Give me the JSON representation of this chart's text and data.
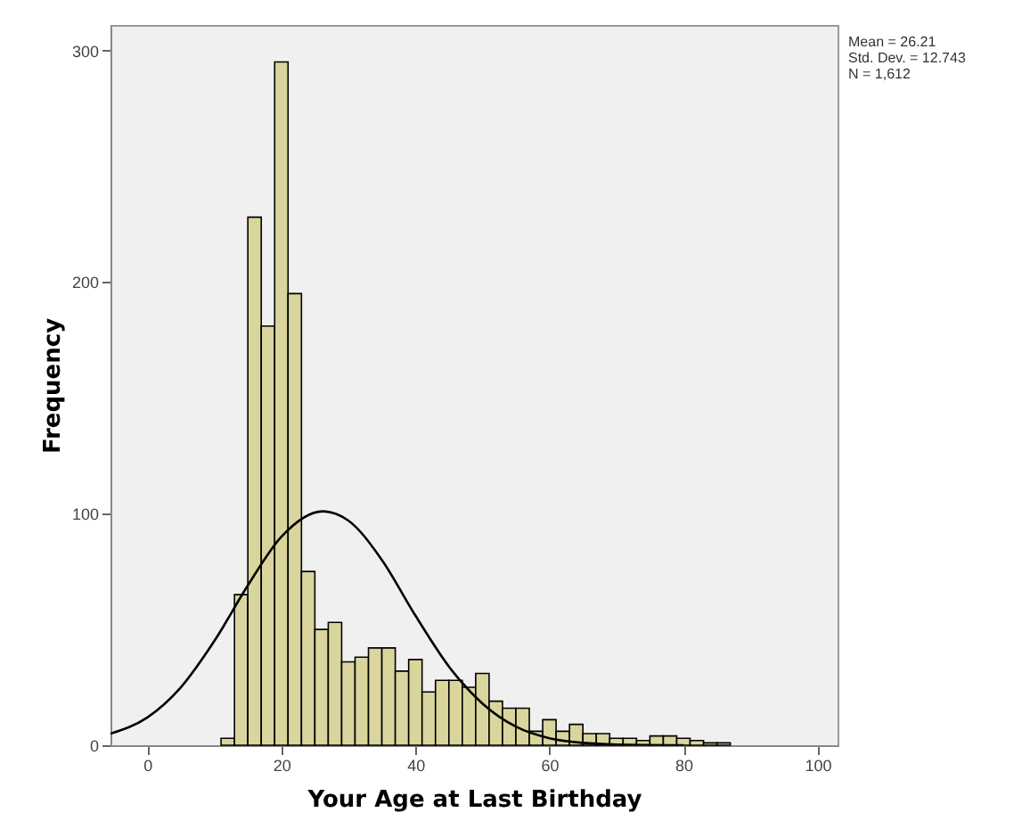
{
  "chart_data": {
    "type": "histogram",
    "xlabel": "Your Age at Last Birthday",
    "ylabel": "Frequency",
    "annotations": [
      "Mean = 26.21",
      "Std. Dev. = 12.743",
      "N = 1,612"
    ],
    "bins": [
      11,
      13,
      15,
      17,
      19,
      21,
      23,
      25,
      27,
      29,
      31,
      33,
      35,
      37,
      39,
      41,
      43,
      45,
      47,
      49,
      51,
      53,
      55,
      57,
      59,
      61,
      63,
      65,
      67,
      69,
      71,
      73,
      75,
      77,
      79,
      81,
      83,
      85,
      87
    ],
    "values": [
      3,
      65,
      228,
      181,
      295,
      195,
      75,
      50,
      53,
      36,
      38,
      42,
      42,
      32,
      37,
      23,
      28,
      28,
      25,
      31,
      19,
      16,
      16,
      6,
      11,
      6,
      9,
      5,
      5,
      3,
      3,
      2,
      4,
      4,
      3,
      2,
      1,
      1
    ],
    "color": "#d9d59c",
    "series": [
      {
        "type": "line",
        "color": "#000000",
        "x": [
          -5.5,
          0,
          5,
          10,
          15,
          20,
          26.21,
          30,
          35,
          40,
          45,
          50,
          55,
          60,
          65,
          70,
          80
        ],
        "values": [
          5,
          12,
          25,
          45,
          69,
          90,
          101,
          97,
          80,
          56,
          34,
          18,
          8,
          3,
          1,
          0.3,
          0
        ]
      }
    ],
    "xlim": [
      -5.5,
      103
    ],
    "ylim": [
      0,
      311
    ],
    "xticks": [
      0,
      20,
      40,
      60,
      80,
      100
    ],
    "yticks": [
      0,
      100,
      200,
      300
    ]
  }
}
